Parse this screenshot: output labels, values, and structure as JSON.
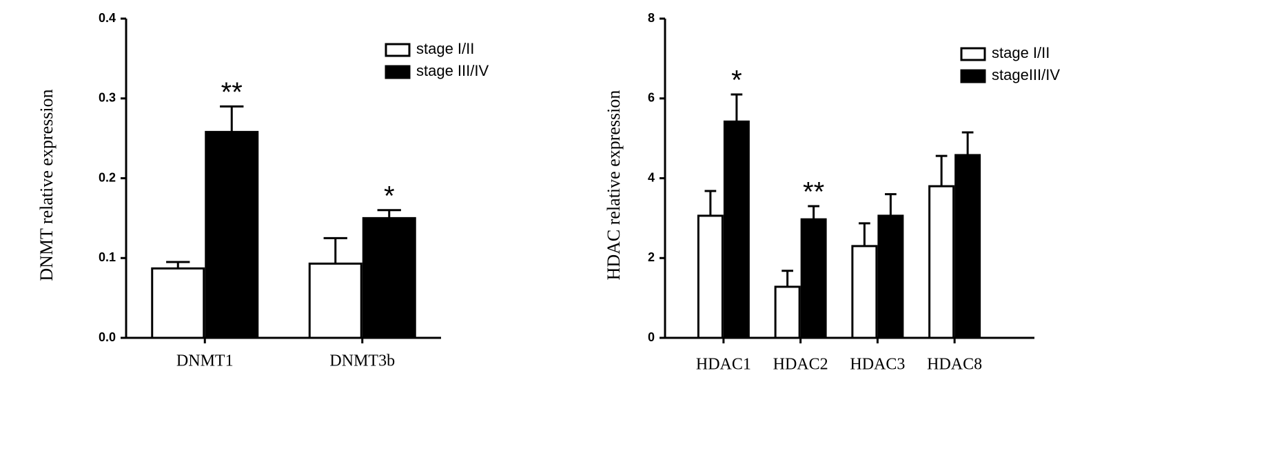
{
  "chart_data": [
    {
      "type": "bar",
      "ylabel": "DNMT relative expression",
      "categories": [
        "DNMT1",
        "DNMT3b"
      ],
      "series": [
        {
          "name": "stage I/II",
          "color": "#ffffff",
          "values": [
            0.087,
            0.093
          ],
          "errors": [
            0.008,
            0.032
          ],
          "annotations": [
            null,
            null
          ]
        },
        {
          "name": "stage III/IV",
          "color": "#000000",
          "values": [
            0.258,
            0.15
          ],
          "errors": [
            0.032,
            0.01
          ],
          "annotations": [
            "**",
            "*"
          ]
        }
      ],
      "ylim": [
        0,
        0.4
      ],
      "yticks": [
        {
          "value": 0,
          "label": "0.0"
        },
        0.1,
        0.2,
        0.3,
        0.4
      ],
      "legend": "upper right"
    },
    {
      "type": "bar",
      "ylabel": "HDAC relative expression",
      "categories": [
        "HDAC1",
        "HDAC2",
        "HDAC3",
        "HDAC8"
      ],
      "series": [
        {
          "name": "stage I/II",
          "color": "#ffffff",
          "values": [
            3.06,
            1.28,
            2.3,
            3.8
          ],
          "errors": [
            0.62,
            0.4,
            0.57,
            0.76
          ],
          "annotations": [
            null,
            null,
            null,
            null
          ]
        },
        {
          "name": "stageIII/IV",
          "color": "#000000",
          "values": [
            5.42,
            2.97,
            3.06,
            4.58
          ],
          "errors": [
            0.68,
            0.33,
            0.54,
            0.57
          ],
          "annotations": [
            "*",
            "**",
            null,
            null
          ]
        }
      ],
      "ylim": [
        0,
        8
      ],
      "yticks": [
        0,
        2,
        4,
        6,
        8
      ],
      "legend": "upper right"
    }
  ]
}
